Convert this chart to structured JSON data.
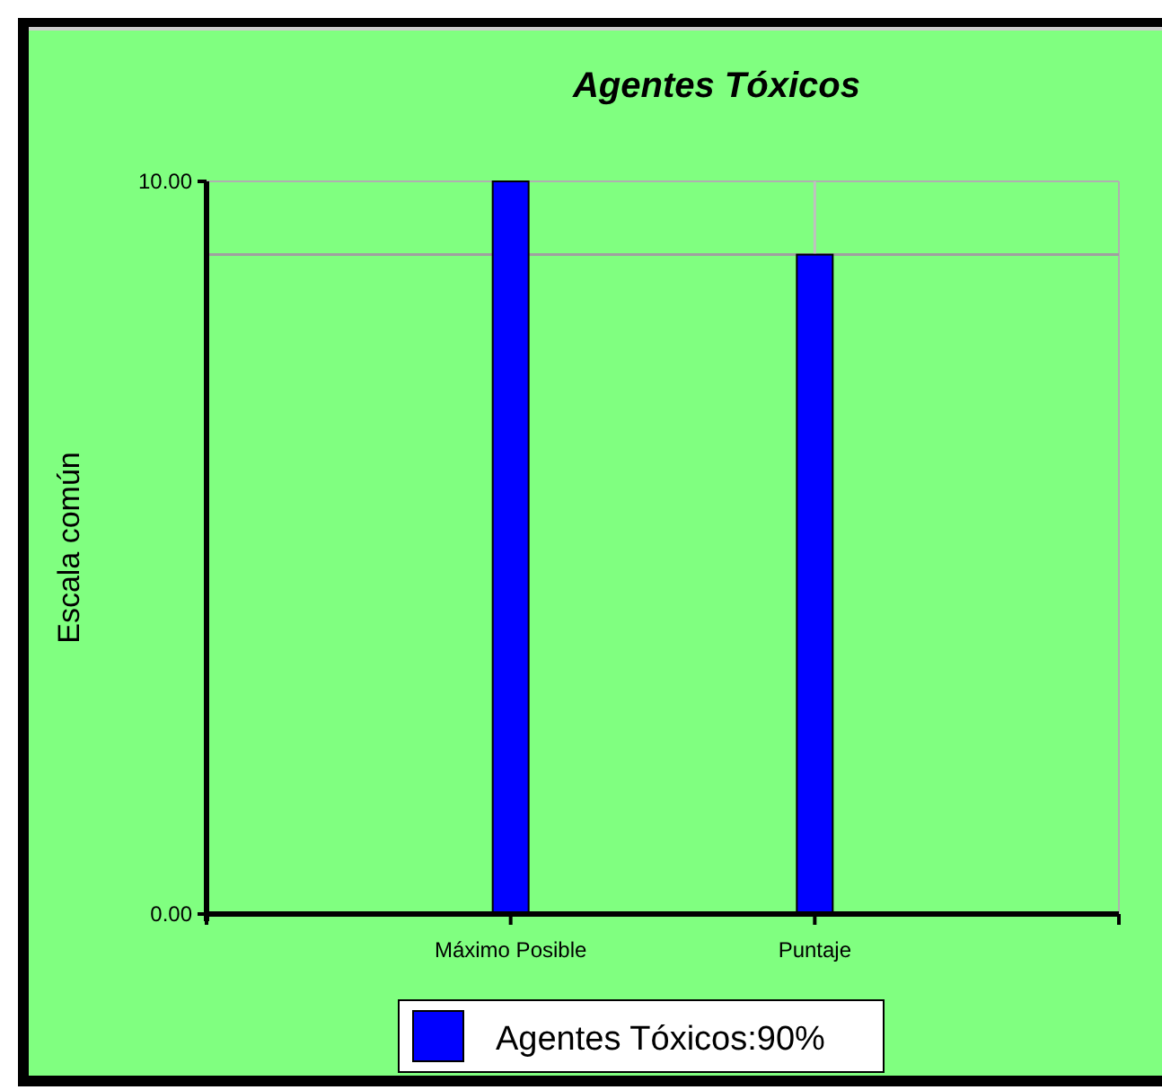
{
  "chart_data": {
    "type": "bar",
    "title": "Agentes Tóxicos",
    "ylabel": "Escala común",
    "categories": [
      null,
      "Máximo Posible",
      "Puntaje",
      null
    ],
    "series": [
      {
        "name": "Agentes Tóxicos:90%",
        "color": "#0000ff",
        "values": [
          null,
          10,
          9,
          null
        ]
      }
    ],
    "ylim": [
      0,
      10
    ],
    "yticks": [
      {
        "value": 0,
        "label": "0.00"
      },
      {
        "value": 10,
        "label": "10.00"
      }
    ],
    "ref_lines": [
      {
        "axis": "y",
        "value": 9,
        "color": "#a0a0a0"
      },
      {
        "axis": "x",
        "value": "Puntaje",
        "color": "#c0c0c0"
      }
    ],
    "legend": "bottom"
  }
}
